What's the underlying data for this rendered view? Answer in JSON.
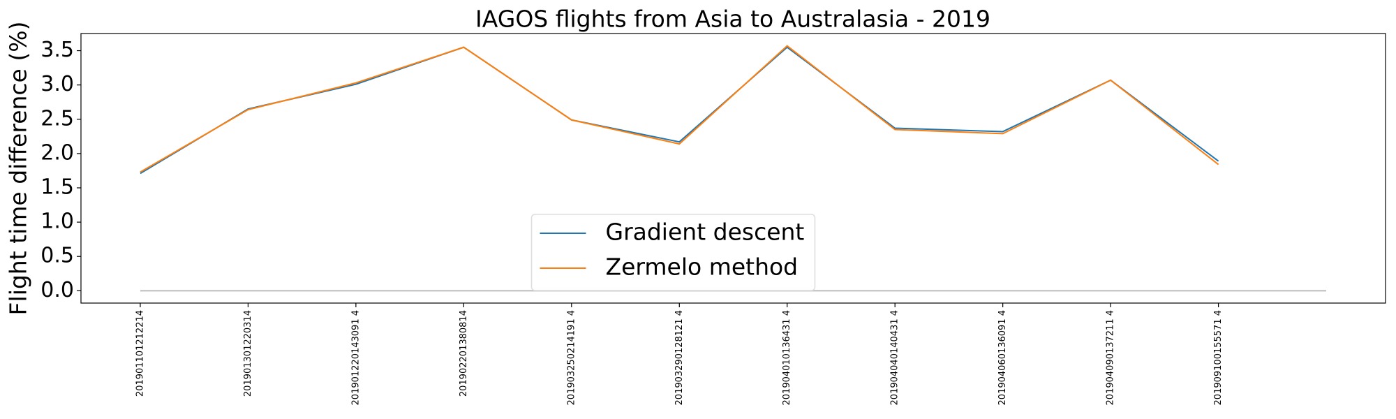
{
  "chart_data": {
    "type": "line",
    "title": "IAGOS flights from Asia to Australasia - 2019",
    "ylabel": "Flight time difference (%)",
    "categories": [
      "201901101212214",
      "201901301220314",
      "201901220143091 4",
      "201902201380814",
      "201903250214191 4",
      "201903290128121 4",
      "201904010136431 4",
      "201904040140431 4",
      "201904060136091 4",
      "201904090137211 4",
      "201909100155571 4"
    ],
    "series": [
      {
        "name": "Gradient descent",
        "color": "#1f77b4",
        "values": [
          1.71,
          2.65,
          3.01,
          3.55,
          2.49,
          2.17,
          3.55,
          2.37,
          2.32,
          3.07,
          1.89
        ]
      },
      {
        "name": "Zermelo method",
        "color": "#ff7f0e",
        "values": [
          1.73,
          2.64,
          3.03,
          3.55,
          2.49,
          2.14,
          3.57,
          2.35,
          2.29,
          3.07,
          1.84
        ]
      }
    ],
    "hline": 0,
    "ylim": [
      -0.18,
      3.75
    ],
    "yticks": [
      {
        "value": 0,
        "label": "0.0"
      },
      {
        "value": 0.5,
        "label": "0.5"
      },
      {
        "value": 1,
        "label": "1.0"
      },
      {
        "value": 1.5,
        "label": "1.5"
      },
      {
        "value": 2,
        "label": "2.0"
      },
      {
        "value": 2.5,
        "label": "2.5"
      },
      {
        "value": 3,
        "label": "3.0"
      },
      {
        "value": 3.5,
        "label": "3.5"
      }
    ],
    "legend": "lower center"
  }
}
